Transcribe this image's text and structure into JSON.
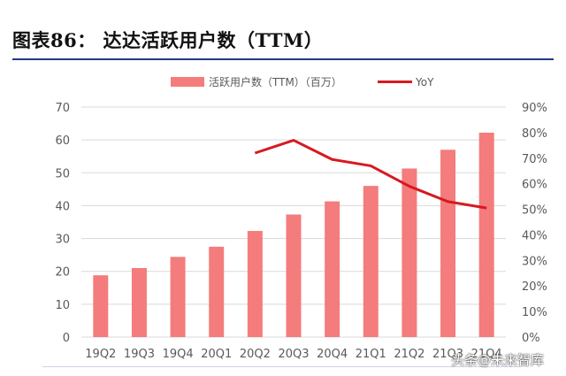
{
  "header": {
    "title": "图表86：  达达活跃用户数（TTM）"
  },
  "watermark": {
    "text": "头条@未来智库"
  },
  "colors": {
    "bar": "#f47c7c",
    "line": "#d71920",
    "grid": "#d9d9d9",
    "axis_text": "#595959"
  },
  "chart_data": {
    "type": "bar+line",
    "title": "达达活跃用户数（TTM）",
    "categories": [
      "19Q2",
      "19Q3",
      "19Q4",
      "20Q1",
      "20Q2",
      "20Q3",
      "20Q4",
      "21Q1",
      "21Q2",
      "21Q3",
      "21Q4"
    ],
    "series": [
      {
        "name": "活跃用户数（TTM）（百万）",
        "type": "bar",
        "axis": "left",
        "values": [
          18.8,
          21.0,
          24.4,
          27.5,
          32.3,
          37.3,
          41.3,
          46.0,
          51.3,
          57.0,
          62.2
        ]
      },
      {
        "name": "YoY",
        "type": "line",
        "axis": "right",
        "x": [
          "20Q2",
          "20Q3",
          "20Q4",
          "21Q1",
          "21Q2",
          "21Q3",
          "21Q4"
        ],
        "values": [
          72,
          77,
          69.5,
          67,
          59,
          53,
          50.5
        ]
      }
    ],
    "y_left": {
      "min": 0,
      "max": 70,
      "ticks": [
        "0",
        "10",
        "20",
        "30",
        "40",
        "50",
        "60",
        "70"
      ]
    },
    "y_right": {
      "min": 0,
      "max": 90,
      "ticks": [
        "0%",
        "10%",
        "20%",
        "30%",
        "40%",
        "50%",
        "60%",
        "70%",
        "80%",
        "90%"
      ]
    },
    "legend": [
      "活跃用户数（TTM）（百万）",
      "YoY"
    ],
    "legend_position": "top-center",
    "grid": true
  }
}
